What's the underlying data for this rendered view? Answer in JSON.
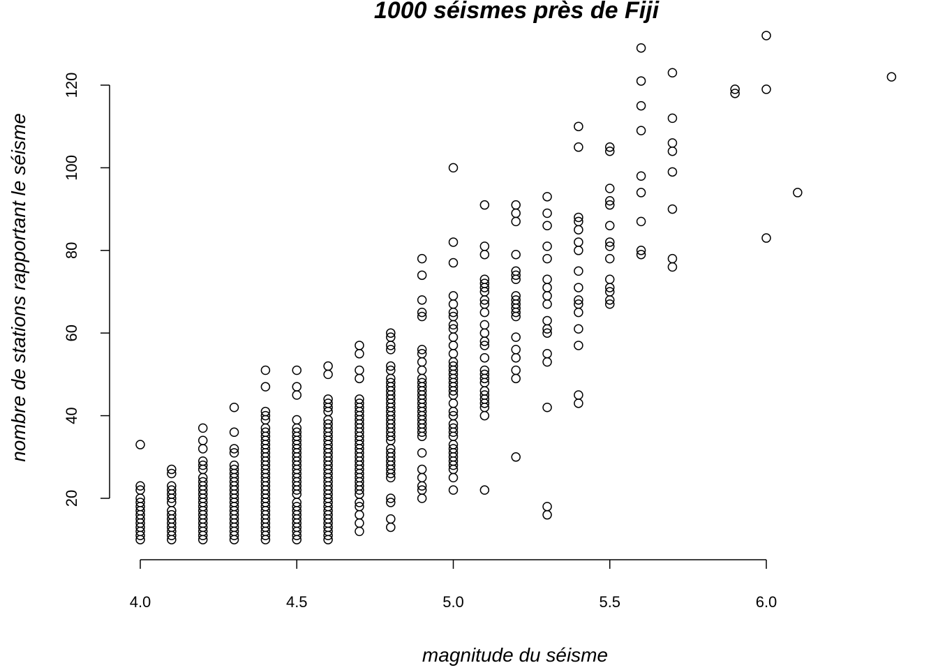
{
  "chart_data": {
    "type": "scatter",
    "title": "1000 séismes près de Fiji",
    "xlabel": "magnitude du séisme",
    "ylabel": "nombre de stations rapportant le séisme",
    "xlim": [
      4.0,
      6.4
    ],
    "ylim": [
      10,
      132
    ],
    "x_ticks": [
      4.0,
      4.5,
      5.0,
      5.5,
      6.0
    ],
    "x_tick_labels": [
      "4.0",
      "4.5",
      "5.0",
      "5.5",
      "6.0"
    ],
    "y_ticks": [
      20,
      40,
      60,
      80,
      100,
      120
    ],
    "y_tick_labels": [
      "20",
      "40",
      "60",
      "80",
      "100",
      "120"
    ],
    "grid": false,
    "legend": "none",
    "columns": [
      {
        "x": 4.0,
        "y": [
          10,
          11,
          12,
          13,
          14,
          15,
          16,
          17,
          18,
          19,
          20,
          22,
          23,
          33
        ]
      },
      {
        "x": 4.1,
        "y": [
          10,
          11,
          12,
          13,
          14,
          15,
          16,
          17,
          19,
          20,
          21,
          22,
          23,
          26,
          27
        ]
      },
      {
        "x": 4.2,
        "y": [
          10,
          11,
          12,
          13,
          14,
          15,
          16,
          17,
          18,
          19,
          20,
          21,
          22,
          23,
          24,
          25,
          27,
          28,
          29,
          32,
          34,
          37
        ]
      },
      {
        "x": 4.3,
        "y": [
          10,
          11,
          12,
          13,
          14,
          15,
          16,
          17,
          18,
          19,
          20,
          21,
          22,
          23,
          24,
          25,
          26,
          27,
          28,
          31,
          32,
          36,
          42
        ]
      },
      {
        "x": 4.4,
        "y": [
          10,
          11,
          12,
          13,
          14,
          15,
          16,
          17,
          18,
          19,
          20,
          21,
          22,
          23,
          24,
          25,
          26,
          27,
          28,
          29,
          30,
          31,
          32,
          33,
          34,
          35,
          36,
          37,
          39,
          40,
          41,
          47,
          51
        ]
      },
      {
        "x": 4.5,
        "y": [
          10,
          11,
          12,
          13,
          14,
          15,
          16,
          17,
          18,
          19,
          21,
          22,
          23,
          24,
          25,
          26,
          27,
          28,
          29,
          30,
          31,
          32,
          33,
          34,
          35,
          36,
          37,
          39,
          45,
          47,
          51
        ]
      },
      {
        "x": 4.6,
        "y": [
          10,
          11,
          12,
          13,
          14,
          15,
          16,
          17,
          18,
          19,
          20,
          21,
          22,
          23,
          24,
          25,
          26,
          27,
          28,
          29,
          30,
          31,
          32,
          33,
          34,
          35,
          36,
          37,
          38,
          39,
          41,
          42,
          43,
          44,
          50,
          52
        ]
      },
      {
        "x": 4.7,
        "y": [
          12,
          14,
          16,
          18,
          19,
          21,
          22,
          23,
          24,
          25,
          26,
          27,
          28,
          29,
          30,
          31,
          32,
          33,
          34,
          35,
          36,
          37,
          38,
          39,
          40,
          41,
          42,
          43,
          44,
          49,
          51,
          55,
          57
        ]
      },
      {
        "x": 4.8,
        "y": [
          13,
          15,
          19,
          20,
          25,
          26,
          27,
          28,
          29,
          30,
          31,
          32,
          34,
          35,
          36,
          37,
          38,
          39,
          40,
          41,
          42,
          43,
          44,
          45,
          46,
          47,
          48,
          49,
          51,
          52,
          56,
          57,
          59,
          60
        ]
      },
      {
        "x": 4.9,
        "y": [
          20,
          22,
          23,
          25,
          27,
          31,
          35,
          36,
          37,
          38,
          39,
          40,
          41,
          42,
          43,
          44,
          45,
          46,
          47,
          48,
          49,
          51,
          53,
          55,
          56,
          64,
          65,
          68,
          74,
          78
        ]
      },
      {
        "x": 5.0,
        "y": [
          22,
          25,
          27,
          28,
          29,
          30,
          31,
          32,
          33,
          35,
          36,
          37,
          38,
          40,
          41,
          43,
          45,
          46,
          47,
          48,
          49,
          50,
          51,
          52,
          53,
          55,
          57,
          59,
          61,
          62,
          64,
          65,
          67,
          69,
          77,
          82,
          100
        ]
      },
      {
        "x": 5.1,
        "y": [
          22,
          40,
          42,
          43,
          44,
          45,
          46,
          48,
          49,
          50,
          51,
          54,
          57,
          58,
          60,
          62,
          65,
          67,
          68,
          70,
          71,
          72,
          73,
          79,
          81,
          91
        ]
      },
      {
        "x": 5.2,
        "y": [
          30,
          49,
          51,
          54,
          56,
          59,
          64,
          65,
          66,
          67,
          68,
          69,
          73,
          74,
          75,
          79,
          87,
          89,
          91
        ]
      },
      {
        "x": 5.3,
        "y": [
          16,
          18,
          42,
          53,
          55,
          60,
          61,
          63,
          67,
          69,
          71,
          73,
          78,
          81,
          86,
          89,
          93
        ]
      },
      {
        "x": 5.4,
        "y": [
          43,
          45,
          57,
          61,
          65,
          67,
          68,
          71,
          75,
          80,
          82,
          85,
          87,
          88,
          105,
          110
        ]
      },
      {
        "x": 5.5,
        "y": [
          67,
          68,
          70,
          71,
          73,
          78,
          81,
          82,
          86,
          91,
          92,
          95,
          104,
          105
        ]
      },
      {
        "x": 5.6,
        "y": [
          79,
          80,
          87,
          94,
          98,
          109,
          115,
          121,
          129
        ]
      },
      {
        "x": 5.7,
        "y": [
          76,
          78,
          90,
          99,
          104,
          106,
          112,
          123
        ]
      },
      {
        "x": 5.9,
        "y": [
          118,
          119
        ]
      },
      {
        "x": 6.0,
        "y": [
          83,
          119,
          132
        ]
      },
      {
        "x": 6.1,
        "y": [
          94
        ]
      },
      {
        "x": 6.4,
        "y": [
          122
        ]
      }
    ]
  }
}
